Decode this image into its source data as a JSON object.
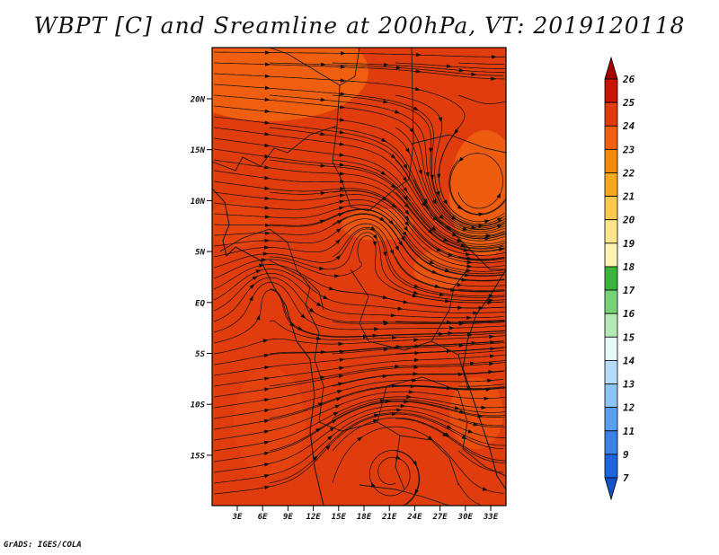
{
  "title": "WBPT [C] and Sreamline at 200hPa, VT: 2019120118",
  "credit": "GrADS: IGES/COLA",
  "map": {
    "lat_ticks": [
      "20N",
      "15N",
      "10N",
      "5N",
      "EQ",
      "5S",
      "10S",
      "15S"
    ],
    "lon_ticks": [
      "3E",
      "6E",
      "9E",
      "12E",
      "15E",
      "18E",
      "21E",
      "24E",
      "27E",
      "30E",
      "33E"
    ],
    "field_color": "#e03c0e",
    "warm_color": "#f06010",
    "land_line_color": "#1a1a1a"
  },
  "colorbar": {
    "labels": [
      "26",
      "25",
      "24",
      "23",
      "22",
      "21",
      "20",
      "19",
      "18",
      "17",
      "16",
      "15",
      "14",
      "13",
      "12",
      "11",
      "9",
      "7"
    ],
    "colors": [
      "#a50000",
      "#c81400",
      "#e03c0e",
      "#f06010",
      "#f58a0a",
      "#f8a81e",
      "#fbc850",
      "#fce58a",
      "#fff3b4",
      "#3cb43c",
      "#78d278",
      "#b4eab4",
      "#e6f8f8",
      "#b4dcfa",
      "#8cc4f6",
      "#5aa0f0",
      "#3c82e6",
      "#1e64dc",
      "#1450c8"
    ]
  }
}
